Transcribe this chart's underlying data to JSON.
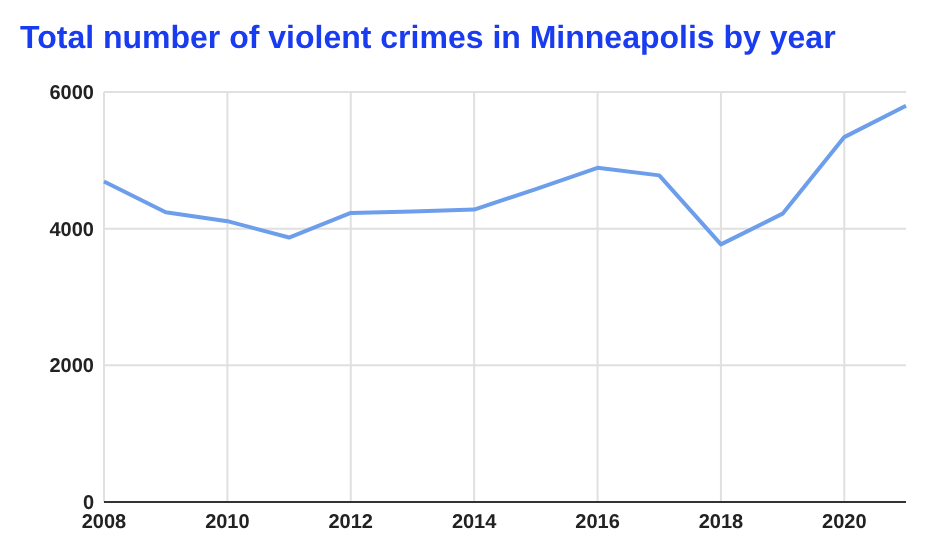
{
  "chart_data": {
    "type": "line",
    "title": "Total number of violent crimes in Minneapolis by year",
    "x": [
      2008,
      2009,
      2010,
      2011,
      2012,
      2013,
      2014,
      2015,
      2016,
      2017,
      2018,
      2019,
      2020,
      2021
    ],
    "series": [
      {
        "color": "#6d9eeb",
        "values": [
          4690,
          4240,
          4110,
          3870,
          4230,
          4250,
          4280,
          4580,
          4890,
          4780,
          3770,
          4220,
          5340,
          5800
        ]
      }
    ],
    "xlim": [
      2008,
      2021
    ],
    "xticks": [
      2008,
      2010,
      2012,
      2014,
      2016,
      2018,
      2020
    ],
    "ylim": [
      0,
      6000
    ],
    "yticks": [
      0,
      2000,
      4000,
      6000
    ],
    "grid": true,
    "marker": "none",
    "line_style": "solid"
  }
}
